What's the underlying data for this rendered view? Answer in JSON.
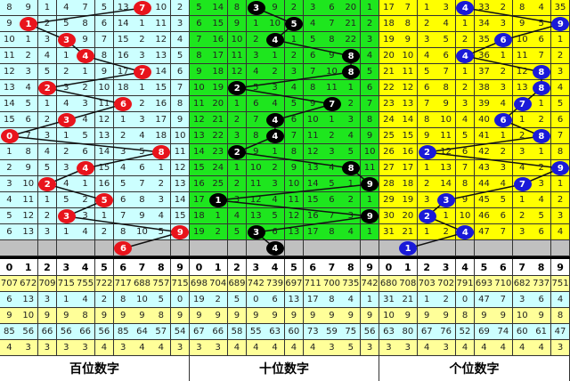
{
  "chart_data": {
    "type": "table",
    "digits": [
      "0",
      "1",
      "2",
      "3",
      "4",
      "5",
      "6",
      "7",
      "8",
      "9"
    ],
    "panels": [
      {
        "label": "百位数字",
        "ball_color": "#e8141c",
        "bg": "#ccffff",
        "rows": [
          [
            8,
            9,
            1,
            4,
            7,
            5,
            13,
            7,
            10,
            2
          ],
          [
            9,
            1,
            2,
            5,
            8,
            6,
            14,
            1,
            11,
            3
          ],
          [
            10,
            1,
            3,
            3,
            9,
            7,
            15,
            2,
            12,
            4
          ],
          [
            11,
            2,
            4,
            1,
            4,
            8,
            16,
            3,
            13,
            5
          ],
          [
            12,
            3,
            5,
            2,
            1,
            9,
            17,
            7,
            14,
            6
          ],
          [
            13,
            4,
            2,
            3,
            2,
            10,
            18,
            1,
            15,
            7
          ],
          [
            14,
            5,
            1,
            4,
            3,
            11,
            6,
            2,
            16,
            8
          ],
          [
            15,
            6,
            2,
            3,
            4,
            12,
            1,
            3,
            17,
            9
          ],
          [
            0,
            7,
            3,
            1,
            5,
            13,
            2,
            4,
            18,
            10
          ],
          [
            1,
            8,
            4,
            2,
            6,
            14,
            3,
            5,
            8,
            11
          ],
          [
            2,
            9,
            5,
            3,
            4,
            15,
            4,
            6,
            1,
            12
          ],
          [
            3,
            10,
            2,
            4,
            1,
            16,
            5,
            7,
            2,
            13
          ],
          [
            4,
            11,
            1,
            5,
            2,
            5,
            6,
            8,
            3,
            14
          ],
          [
            5,
            12,
            2,
            3,
            3,
            1,
            7,
            9,
            4,
            15
          ],
          [
            6,
            13,
            3,
            1,
            4,
            2,
            8,
            10,
            5,
            9
          ]
        ],
        "hits": [
          7,
          1,
          3,
          4,
          7,
          2,
          6,
          3,
          0,
          8,
          4,
          2,
          5,
          3,
          9,
          6
        ],
        "stats": [
          [
            707,
            672,
            709,
            715,
            755,
            722,
            717,
            688,
            757,
            715
          ],
          [
            6,
            13,
            3,
            1,
            4,
            2,
            8,
            10,
            5,
            0
          ],
          [
            9,
            10,
            9,
            9,
            8,
            9,
            9,
            9,
            8,
            9
          ],
          [
            85,
            56,
            66,
            56,
            66,
            56,
            85,
            64,
            57,
            54
          ],
          [
            4,
            3,
            3,
            3,
            3,
            4,
            3,
            4,
            4,
            3
          ]
        ]
      },
      {
        "label": "十位数字",
        "ball_color": "#000000",
        "bg": "#1ee61e",
        "rows": [
          [
            5,
            14,
            8,
            3,
            9,
            2,
            3,
            6,
            20,
            1
          ],
          [
            6,
            15,
            9,
            1,
            10,
            5,
            4,
            7,
            21,
            2
          ],
          [
            7,
            16,
            10,
            2,
            4,
            1,
            5,
            8,
            22,
            3
          ],
          [
            8,
            17,
            11,
            3,
            1,
            2,
            6,
            9,
            8,
            4
          ],
          [
            9,
            18,
            12,
            4,
            2,
            3,
            7,
            10,
            8,
            5
          ],
          [
            10,
            19,
            2,
            5,
            3,
            4,
            8,
            11,
            1,
            6
          ],
          [
            11,
            20,
            1,
            6,
            4,
            5,
            9,
            7,
            2,
            7
          ],
          [
            12,
            21,
            2,
            7,
            4,
            6,
            10,
            1,
            3,
            8
          ],
          [
            13,
            22,
            3,
            8,
            4,
            7,
            11,
            2,
            4,
            9
          ],
          [
            14,
            23,
            2,
            9,
            1,
            8,
            12,
            3,
            5,
            10
          ],
          [
            15,
            24,
            1,
            10,
            2,
            9,
            13,
            4,
            8,
            11
          ],
          [
            16,
            25,
            2,
            11,
            3,
            10,
            14,
            5,
            1,
            9
          ],
          [
            17,
            1,
            3,
            12,
            4,
            11,
            15,
            6,
            2,
            1
          ],
          [
            18,
            1,
            4,
            13,
            5,
            12,
            16,
            7,
            3,
            9
          ],
          [
            19,
            2,
            5,
            3,
            6,
            13,
            17,
            8,
            4,
            1
          ]
        ],
        "hits": [
          3,
          5,
          4,
          8,
          8,
          2,
          7,
          4,
          4,
          2,
          8,
          9,
          1,
          9,
          3,
          4
        ],
        "stats": [
          [
            698,
            704,
            689,
            742,
            739,
            697,
            711,
            700,
            735,
            742
          ],
          [
            19,
            2,
            5,
            0,
            6,
            13,
            17,
            8,
            4,
            1
          ],
          [
            9,
            9,
            9,
            9,
            9,
            9,
            9,
            9,
            9,
            9
          ],
          [
            67,
            66,
            58,
            55,
            63,
            60,
            73,
            59,
            75,
            56
          ],
          [
            3,
            3,
            4,
            4,
            4,
            4,
            4,
            3,
            5,
            3
          ]
        ]
      },
      {
        "label": "个位数字",
        "ball_color": "#1a1ad8",
        "bg": "#ffff00",
        "rows": [
          [
            17,
            7,
            1,
            3,
            4,
            33,
            2,
            8,
            4,
            35
          ],
          [
            18,
            8,
            2,
            4,
            1,
            34,
            3,
            9,
            5,
            9
          ],
          [
            19,
            9,
            3,
            5,
            2,
            35,
            6,
            10,
            6,
            1
          ],
          [
            20,
            10,
            4,
            6,
            4,
            36,
            1,
            11,
            7,
            2
          ],
          [
            21,
            11,
            5,
            7,
            1,
            37,
            2,
            12,
            8,
            3
          ],
          [
            22,
            12,
            6,
            8,
            2,
            38,
            3,
            13,
            8,
            4
          ],
          [
            23,
            13,
            7,
            9,
            3,
            39,
            4,
            7,
            1,
            5
          ],
          [
            24,
            14,
            8,
            10,
            4,
            40,
            6,
            1,
            2,
            6
          ],
          [
            25,
            15,
            9,
            11,
            5,
            41,
            1,
            2,
            8,
            7
          ],
          [
            26,
            16,
            2,
            12,
            6,
            42,
            2,
            3,
            1,
            8
          ],
          [
            27,
            17,
            1,
            13,
            7,
            43,
            3,
            4,
            2,
            9
          ],
          [
            28,
            18,
            2,
            14,
            8,
            44,
            4,
            7,
            3,
            1
          ],
          [
            29,
            19,
            3,
            3,
            9,
            45,
            5,
            1,
            4,
            2
          ],
          [
            30,
            20,
            2,
            1,
            10,
            46,
            6,
            2,
            5,
            3
          ],
          [
            31,
            21,
            1,
            2,
            4,
            47,
            7,
            3,
            6,
            4
          ]
        ],
        "hits": [
          4,
          9,
          6,
          4,
          8,
          8,
          7,
          6,
          8,
          2,
          9,
          7,
          3,
          2,
          4,
          1
        ],
        "stats": [
          [
            680,
            708,
            703,
            702,
            791,
            693,
            710,
            682,
            737,
            751
          ],
          [
            31,
            21,
            1,
            2,
            0,
            47,
            7,
            3,
            6,
            4
          ],
          [
            10,
            9,
            9,
            9,
            8,
            9,
            9,
            10,
            9,
            8
          ],
          [
            63,
            80,
            67,
            76,
            52,
            69,
            74,
            60,
            61,
            47
          ],
          [
            3,
            3,
            4,
            3,
            4,
            4,
            4,
            4,
            4,
            3
          ]
        ]
      }
    ],
    "colors": {
      "stat_yellow": "#ffff99",
      "stat_cyan": "#ccffff",
      "pending_row": "#c0c0c0"
    }
  }
}
